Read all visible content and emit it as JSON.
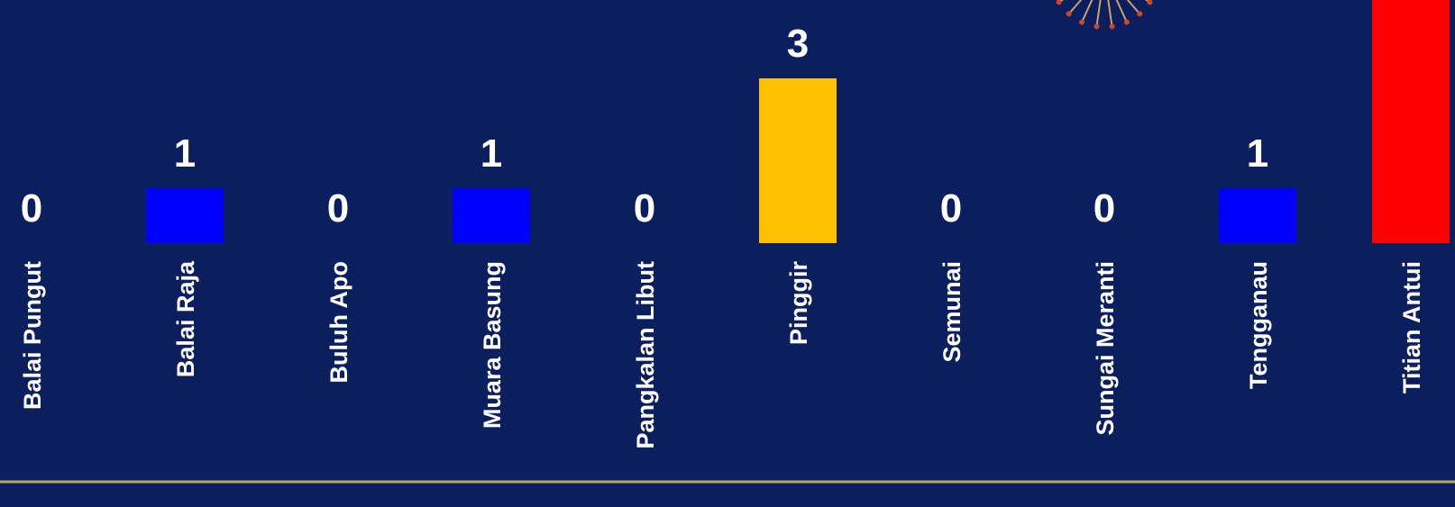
{
  "chart_data": {
    "type": "bar",
    "title": "",
    "xlabel": "",
    "ylabel": "",
    "categories": [
      "Balai Pungut",
      "Balai Raja",
      "Buluh Apo",
      "Muara Basung",
      "Pangkalan Libut",
      "Pinggir",
      "Semunai",
      "Sungai Meranti",
      "Tengganau",
      "Titian Antui"
    ],
    "values": [
      0,
      1,
      0,
      1,
      0,
      3,
      0,
      0,
      1,
      null
    ],
    "data_labels": [
      "0",
      "1",
      "0",
      "1",
      "0",
      "3",
      "0",
      "0",
      "1",
      ""
    ],
    "bar_colors": [
      "#0000ff",
      "#0000ff",
      "#0000ff",
      "#0000ff",
      "#0000ff",
      "#ffc000",
      "#0000ff",
      "#0000ff",
      "#0000ff",
      "#ff0000"
    ],
    "note_last_bar": "Titian Antui bar extends beyond the top of the visible area; its value label is not visible",
    "grid": false,
    "legend": "none"
  },
  "colors": {
    "background": "#0b1f5e",
    "axis_line": "#b9a46a",
    "text": "#ffffff"
  },
  "decoration": {
    "icon": "virus-icon"
  }
}
